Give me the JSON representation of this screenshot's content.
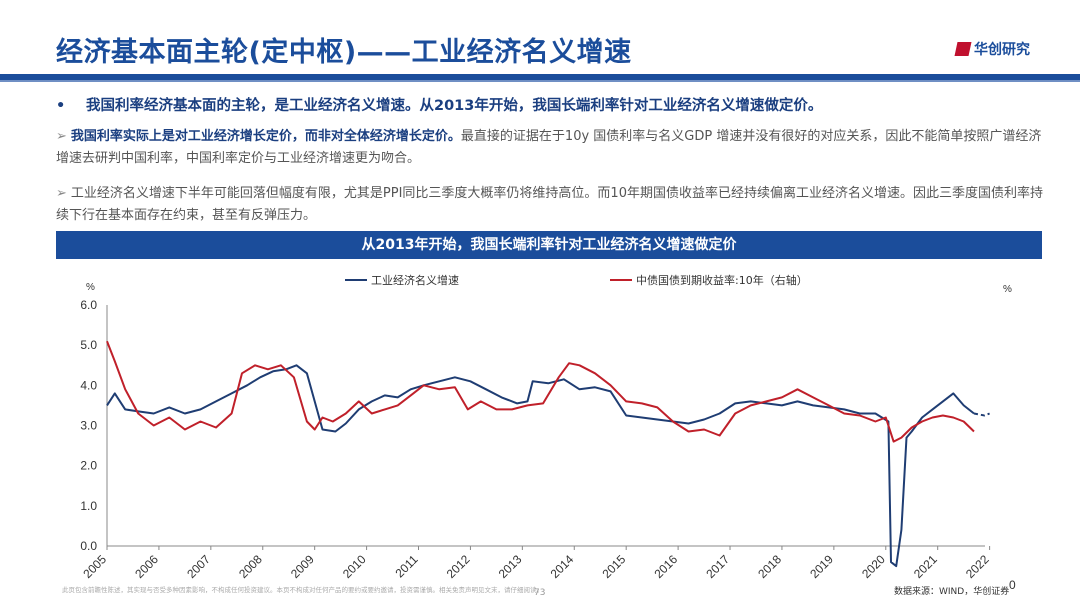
{
  "header": {
    "title": "经济基本面主轮(定中枢)——工业经济名义增速",
    "logo_text": "华创研究"
  },
  "bullet_main": "我国利率经济基本面的主轮，是工业经济名义增速。从2013年开始，我国长端利率针对工业经济名义增速做定价。",
  "para1": {
    "bold": "我国利率实际上是对工业经济增长定价，而非对全体经济增长定价。",
    "rest": "最直接的证据在于10y 国债利率与名义GDP 增速并没有很好的对应关系，因此不能简单按照广谱经济增速去研判中国利率，中国利率定价与工业经济增速更为吻合。"
  },
  "para2": "工业经济名义增速下半年可能回落但幅度有限，尤其是PPI同比三季度大概率仍将维持高位。而10年期国债收益率已经持续偏离工业经济名义增速。因此三季度国债利率持续下行在基本面存在约束，甚至有反弹压力。",
  "banner": "从2013年开始，我国长端利率针对工业经济名义增速做定价",
  "footer": {
    "disclaimer": "此页包含前瞻性陈述，其实现与否受多种因素影响，不构成任何投资建议。本页不构成对任何产品的要约或要约邀请，投资需谨慎。相关免责声明见文末，请仔细阅读。",
    "page": "73",
    "source": "数据来源：WIND，华创证券"
  },
  "colors": {
    "accent": "#1b4d9b",
    "series1": "#1f3d73",
    "series2": "#c0202a"
  },
  "chart_data": {
    "type": "line",
    "title": "",
    "xlabel": "",
    "ylabel": "%",
    "y2label": "%",
    "ylim": [
      0,
      6
    ],
    "y2lim": [
      0,
      6
    ],
    "yticks": [
      "0.0",
      "1.0",
      "2.0",
      "3.0",
      "4.0",
      "5.0",
      "6.0"
    ],
    "y2ticks_visible": [
      "0"
    ],
    "xlim": [
      2005,
      2022.2
    ],
    "xticks": [
      "2005",
      "2006",
      "2007",
      "2008",
      "2009",
      "2010",
      "2011",
      "2012",
      "2013",
      "2014",
      "2015",
      "2016",
      "2017",
      "2018",
      "2019",
      "2020",
      "2021",
      "2022"
    ],
    "grid": false,
    "legend_position": "top",
    "series": [
      {
        "name": "工业经济名义增速",
        "axis": "left",
        "x": [
          2005.0,
          2005.15,
          2005.35,
          2005.6,
          2005.9,
          2006.2,
          2006.5,
          2006.8,
          2007.1,
          2007.4,
          2007.7,
          2007.95,
          2008.2,
          2008.45,
          2008.65,
          2008.85,
          2009.0,
          2009.15,
          2009.4,
          2009.6,
          2009.85,
          2010.1,
          2010.35,
          2010.6,
          2010.85,
          2011.1,
          2011.4,
          2011.7,
          2012.0,
          2012.3,
          2012.6,
          2012.9,
          2013.1,
          2013.2,
          2013.5,
          2013.8,
          2014.1,
          2014.4,
          2014.7,
          2015.0,
          2015.3,
          2015.6,
          2015.9,
          2016.2,
          2016.5,
          2016.8,
          2017.1,
          2017.4,
          2017.7,
          2018.0,
          2018.3,
          2018.6,
          2018.9,
          2019.2,
          2019.5,
          2019.8,
          2020.05,
          2020.1,
          2020.2,
          2020.3,
          2020.4,
          2020.5,
          2020.7,
          2020.9,
          2021.1,
          2021.3,
          2021.5,
          2021.7
        ],
        "y": [
          3.5,
          3.8,
          3.4,
          3.35,
          3.3,
          3.45,
          3.3,
          3.4,
          3.6,
          3.8,
          4.0,
          4.2,
          4.35,
          4.4,
          4.5,
          4.3,
          3.6,
          2.9,
          2.85,
          3.05,
          3.4,
          3.6,
          3.75,
          3.7,
          3.9,
          4.0,
          4.1,
          4.2,
          4.1,
          3.9,
          3.7,
          3.55,
          3.6,
          4.1,
          4.05,
          4.15,
          3.9,
          3.95,
          3.85,
          3.25,
          3.2,
          3.15,
          3.1,
          3.05,
          3.15,
          3.3,
          3.55,
          3.6,
          3.55,
          3.5,
          3.6,
          3.5,
          3.45,
          3.4,
          3.3,
          3.3,
          3.1,
          -0.4,
          -0.5,
          0.4,
          2.7,
          2.85,
          3.2,
          3.4,
          3.6,
          3.8,
          3.5,
          3.3
        ],
        "projected": {
          "x": [
            2021.7,
            2021.9,
            2022.0
          ],
          "y": [
            3.3,
            3.25,
            3.3
          ]
        }
      },
      {
        "name": "中债国债到期收益率:10年（右轴）",
        "axis": "right",
        "x": [
          2005.0,
          2005.15,
          2005.35,
          2005.6,
          2005.9,
          2006.2,
          2006.5,
          2006.8,
          2007.1,
          2007.4,
          2007.6,
          2007.85,
          2008.1,
          2008.35,
          2008.6,
          2008.85,
          2009.0,
          2009.15,
          2009.35,
          2009.6,
          2009.85,
          2010.1,
          2010.35,
          2010.6,
          2010.9,
          2011.1,
          2011.4,
          2011.7,
          2011.95,
          2012.2,
          2012.5,
          2012.8,
          2013.1,
          2013.4,
          2013.7,
          2013.9,
          2014.1,
          2014.4,
          2014.7,
          2015.0,
          2015.3,
          2015.6,
          2015.9,
          2016.2,
          2016.5,
          2016.8,
          2017.1,
          2017.4,
          2017.7,
          2018.0,
          2018.3,
          2018.6,
          2018.9,
          2019.2,
          2019.5,
          2019.8,
          2020.0,
          2020.15,
          2020.3,
          2020.5,
          2020.7,
          2020.9,
          2021.1,
          2021.3,
          2021.5,
          2021.7
        ],
        "y": [
          5.1,
          4.6,
          3.9,
          3.3,
          3.0,
          3.2,
          2.9,
          3.1,
          2.95,
          3.3,
          4.3,
          4.5,
          4.4,
          4.5,
          4.2,
          3.1,
          2.9,
          3.2,
          3.1,
          3.3,
          3.6,
          3.3,
          3.4,
          3.5,
          3.8,
          4.0,
          3.9,
          3.95,
          3.4,
          3.6,
          3.4,
          3.4,
          3.5,
          3.55,
          4.2,
          4.55,
          4.5,
          4.3,
          4.0,
          3.6,
          3.55,
          3.45,
          3.1,
          2.85,
          2.9,
          2.75,
          3.3,
          3.5,
          3.6,
          3.7,
          3.9,
          3.7,
          3.5,
          3.3,
          3.25,
          3.1,
          3.2,
          2.6,
          2.7,
          2.95,
          3.1,
          3.2,
          3.25,
          3.2,
          3.1,
          2.85
        ]
      }
    ]
  }
}
